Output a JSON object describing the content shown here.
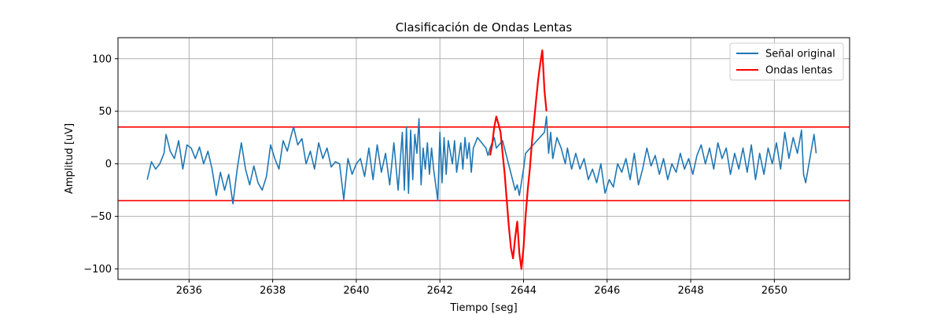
{
  "chart_data": {
    "type": "line",
    "title": "Clasificación de Ondas Lentas",
    "xlabel": "Tiempo [seg]",
    "ylabel": "Amplitud [uV]",
    "xlim": [
      2634.3,
      2651.8
    ],
    "ylim": [
      -110,
      120
    ],
    "xticks": [
      2636,
      2638,
      2640,
      2642,
      2644,
      2646,
      2648,
      2650
    ],
    "yticks": [
      -100,
      -50,
      0,
      50,
      100
    ],
    "grid": true,
    "legend_position": "top-right",
    "thresholds": [
      {
        "value": 35,
        "color": "#ff0000"
      },
      {
        "value": -35,
        "color": "#ff0000"
      }
    ],
    "series": [
      {
        "name": "Señal original",
        "color": "#1f77b4",
        "points": [
          [
            2635.0,
            -15
          ],
          [
            2635.1,
            2
          ],
          [
            2635.2,
            -5
          ],
          [
            2635.3,
            0
          ],
          [
            2635.4,
            10
          ],
          [
            2635.45,
            28
          ],
          [
            2635.55,
            12
          ],
          [
            2635.65,
            5
          ],
          [
            2635.75,
            22
          ],
          [
            2635.85,
            -5
          ],
          [
            2635.95,
            18
          ],
          [
            2636.05,
            15
          ],
          [
            2636.15,
            5
          ],
          [
            2636.25,
            16
          ],
          [
            2636.35,
            0
          ],
          [
            2636.45,
            12
          ],
          [
            2636.55,
            -5
          ],
          [
            2636.65,
            -30
          ],
          [
            2636.75,
            -8
          ],
          [
            2636.85,
            -25
          ],
          [
            2636.95,
            -10
          ],
          [
            2637.05,
            -38
          ],
          [
            2637.15,
            -5
          ],
          [
            2637.25,
            20
          ],
          [
            2637.35,
            -5
          ],
          [
            2637.45,
            -20
          ],
          [
            2637.55,
            -2
          ],
          [
            2637.65,
            -18
          ],
          [
            2637.75,
            -25
          ],
          [
            2637.85,
            -12
          ],
          [
            2637.95,
            18
          ],
          [
            2638.05,
            5
          ],
          [
            2638.15,
            -5
          ],
          [
            2638.25,
            22
          ],
          [
            2638.35,
            12
          ],
          [
            2638.45,
            28
          ],
          [
            2638.5,
            35
          ],
          [
            2638.6,
            18
          ],
          [
            2638.7,
            24
          ],
          [
            2638.8,
            0
          ],
          [
            2638.9,
            12
          ],
          [
            2639.0,
            -5
          ],
          [
            2639.1,
            20
          ],
          [
            2639.2,
            5
          ],
          [
            2639.3,
            15
          ],
          [
            2639.4,
            -3
          ],
          [
            2639.5,
            2
          ],
          [
            2639.6,
            0
          ],
          [
            2639.7,
            -34
          ],
          [
            2639.8,
            5
          ],
          [
            2639.9,
            -10
          ],
          [
            2640.0,
            0
          ],
          [
            2640.1,
            5
          ],
          [
            2640.2,
            -12
          ],
          [
            2640.3,
            15
          ],
          [
            2640.4,
            -15
          ],
          [
            2640.5,
            18
          ],
          [
            2640.6,
            -8
          ],
          [
            2640.7,
            10
          ],
          [
            2640.8,
            -20
          ],
          [
            2640.9,
            20
          ],
          [
            2641.0,
            -25
          ],
          [
            2641.1,
            30
          ],
          [
            2641.15,
            -25
          ],
          [
            2641.2,
            35
          ],
          [
            2641.25,
            -28
          ],
          [
            2641.3,
            32
          ],
          [
            2641.35,
            -15
          ],
          [
            2641.4,
            28
          ],
          [
            2641.45,
            10
          ],
          [
            2641.5,
            43
          ],
          [
            2641.55,
            -20
          ],
          [
            2641.6,
            15
          ],
          [
            2641.65,
            -5
          ],
          [
            2641.7,
            20
          ],
          [
            2641.75,
            -10
          ],
          [
            2641.8,
            15
          ],
          [
            2641.85,
            -5
          ],
          [
            2641.95,
            -35
          ],
          [
            2642.0,
            30
          ],
          [
            2642.05,
            -18
          ],
          [
            2642.1,
            25
          ],
          [
            2642.15,
            -10
          ],
          [
            2642.2,
            22
          ],
          [
            2642.3,
            0
          ],
          [
            2642.35,
            22
          ],
          [
            2642.4,
            -8
          ],
          [
            2642.5,
            20
          ],
          [
            2642.55,
            -5
          ],
          [
            2642.6,
            25
          ],
          [
            2642.65,
            5
          ],
          [
            2642.7,
            20
          ],
          [
            2642.75,
            -8
          ],
          [
            2642.8,
            15
          ],
          [
            2642.85,
            20
          ],
          [
            2642.9,
            25
          ],
          [
            2643.0,
            20
          ],
          [
            2643.1,
            15
          ],
          [
            2643.15,
            8
          ],
          [
            2643.2,
            15
          ],
          [
            2643.3,
            25
          ],
          [
            2643.35,
            15
          ],
          [
            2643.5,
            22
          ],
          [
            2643.8,
            -25
          ],
          [
            2643.85,
            -20
          ],
          [
            2643.9,
            -30
          ],
          [
            2644.0,
            -5
          ],
          [
            2644.05,
            10
          ],
          [
            2644.5,
            30
          ],
          [
            2644.55,
            45
          ],
          [
            2644.6,
            10
          ],
          [
            2644.65,
            30
          ],
          [
            2644.7,
            5
          ],
          [
            2644.8,
            25
          ],
          [
            2644.9,
            15
          ],
          [
            2645.0,
            0
          ],
          [
            2645.05,
            15
          ],
          [
            2645.15,
            -5
          ],
          [
            2645.25,
            10
          ],
          [
            2645.35,
            -5
          ],
          [
            2645.45,
            5
          ],
          [
            2645.55,
            -15
          ],
          [
            2645.65,
            -5
          ],
          [
            2645.75,
            -18
          ],
          [
            2645.85,
            0
          ],
          [
            2645.95,
            -28
          ],
          [
            2646.05,
            -15
          ],
          [
            2646.15,
            -22
          ],
          [
            2646.25,
            0
          ],
          [
            2646.35,
            -8
          ],
          [
            2646.45,
            5
          ],
          [
            2646.55,
            -15
          ],
          [
            2646.65,
            10
          ],
          [
            2646.75,
            -20
          ],
          [
            2646.85,
            -5
          ],
          [
            2646.95,
            15
          ],
          [
            2647.05,
            -2
          ],
          [
            2647.15,
            8
          ],
          [
            2647.25,
            -10
          ],
          [
            2647.35,
            5
          ],
          [
            2647.45,
            -15
          ],
          [
            2647.55,
            0
          ],
          [
            2647.65,
            -8
          ],
          [
            2647.75,
            10
          ],
          [
            2647.85,
            -5
          ],
          [
            2647.95,
            5
          ],
          [
            2648.05,
            -10
          ],
          [
            2648.15,
            8
          ],
          [
            2648.25,
            18
          ],
          [
            2648.35,
            0
          ],
          [
            2648.45,
            15
          ],
          [
            2648.55,
            -5
          ],
          [
            2648.65,
            20
          ],
          [
            2648.75,
            5
          ],
          [
            2648.85,
            15
          ],
          [
            2648.95,
            -10
          ],
          [
            2649.05,
            10
          ],
          [
            2649.15,
            -5
          ],
          [
            2649.25,
            15
          ],
          [
            2649.35,
            -8
          ],
          [
            2649.45,
            18
          ],
          [
            2649.55,
            -15
          ],
          [
            2649.65,
            10
          ],
          [
            2649.75,
            -10
          ],
          [
            2649.85,
            15
          ],
          [
            2649.95,
            0
          ],
          [
            2650.05,
            20
          ],
          [
            2650.15,
            -5
          ],
          [
            2650.25,
            30
          ],
          [
            2650.35,
            5
          ],
          [
            2650.45,
            25
          ],
          [
            2650.55,
            10
          ],
          [
            2650.65,
            32
          ],
          [
            2650.7,
            -10
          ],
          [
            2650.75,
            -18
          ],
          [
            2650.85,
            5
          ],
          [
            2650.95,
            28
          ],
          [
            2651.0,
            10
          ]
        ]
      },
      {
        "name": "Ondas lentas",
        "color": "#ff0000",
        "points": [
          [
            2643.2,
            8
          ],
          [
            2643.25,
            18
          ],
          [
            2643.3,
            35
          ],
          [
            2643.35,
            45
          ],
          [
            2643.4,
            38
          ],
          [
            2643.45,
            30
          ],
          [
            2643.5,
            10
          ],
          [
            2643.55,
            -10
          ],
          [
            2643.6,
            -35
          ],
          [
            2643.65,
            -60
          ],
          [
            2643.7,
            -80
          ],
          [
            2643.75,
            -90
          ],
          [
            2643.8,
            -70
          ],
          [
            2643.85,
            -55
          ],
          [
            2643.9,
            -85
          ],
          [
            2643.95,
            -100
          ],
          [
            2644.0,
            -80
          ],
          [
            2644.05,
            -50
          ],
          [
            2644.1,
            -25
          ],
          [
            2644.15,
            -5
          ],
          [
            2644.2,
            20
          ],
          [
            2644.25,
            40
          ],
          [
            2644.3,
            60
          ],
          [
            2644.35,
            80
          ],
          [
            2644.4,
            95
          ],
          [
            2644.45,
            108
          ],
          [
            2644.5,
            70
          ],
          [
            2644.55,
            50
          ]
        ]
      }
    ]
  }
}
